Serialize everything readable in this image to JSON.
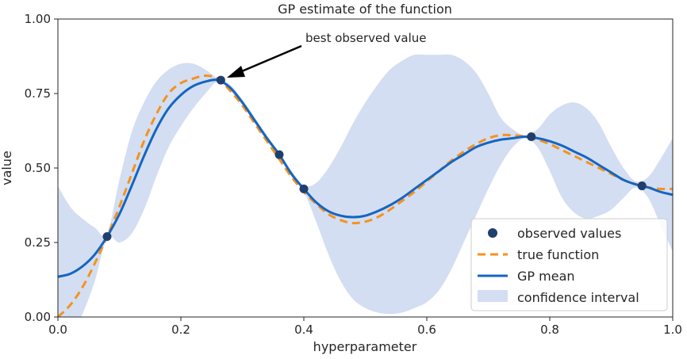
{
  "chart_data": {
    "type": "line",
    "title": "GP estimate of the function",
    "xlabel": "hyperparameter",
    "ylabel": "value",
    "xlim": [
      0.0,
      1.0
    ],
    "ylim": [
      0.0,
      1.0
    ],
    "xticks": [
      "0.0",
      "0.2",
      "0.4",
      "0.6",
      "0.8",
      "1.0"
    ],
    "yticks": [
      "0.00",
      "0.25",
      "0.50",
      "0.75",
      "1.00"
    ],
    "xtick_values": [
      0.0,
      0.2,
      0.4,
      0.6,
      0.8,
      1.0
    ],
    "ytick_values": [
      0.0,
      0.25,
      0.5,
      0.75,
      1.0
    ],
    "grid": false,
    "legend_position": "bottom-right",
    "colors": {
      "observed": "#1f3f6e",
      "true_function": "#f5921e",
      "gp_mean": "#1565c0",
      "confidence": "#d3def2"
    },
    "legend": {
      "observed": "observed values",
      "true_function": "true function",
      "gp_mean": "GP mean",
      "confidence": "confidence interval"
    },
    "annotation": {
      "text": "best observed value",
      "point": [
        0.265,
        0.795
      ]
    },
    "observed": {
      "x": [
        0.08,
        0.265,
        0.36,
        0.4,
        0.77,
        0.95
      ],
      "y": [
        0.27,
        0.795,
        0.545,
        0.43,
        0.605,
        0.44
      ]
    },
    "true_function": {
      "x": [
        0.0,
        0.02,
        0.04,
        0.06,
        0.08,
        0.1,
        0.12,
        0.14,
        0.16,
        0.18,
        0.2,
        0.22,
        0.24,
        0.26,
        0.28,
        0.3,
        0.32,
        0.34,
        0.36,
        0.38,
        0.4,
        0.42,
        0.44,
        0.46,
        0.48,
        0.5,
        0.52,
        0.54,
        0.56,
        0.58,
        0.6,
        0.62,
        0.64,
        0.66,
        0.68,
        0.7,
        0.72,
        0.74,
        0.76,
        0.78,
        0.8,
        0.82,
        0.84,
        0.86,
        0.88,
        0.9,
        0.92,
        0.94,
        0.96,
        0.98,
        1.0
      ],
      "y": [
        0.0,
        0.04,
        0.1,
        0.18,
        0.27,
        0.37,
        0.48,
        0.59,
        0.68,
        0.75,
        0.785,
        0.8,
        0.81,
        0.8,
        0.76,
        0.71,
        0.65,
        0.59,
        0.53,
        0.47,
        0.42,
        0.38,
        0.345,
        0.325,
        0.315,
        0.32,
        0.335,
        0.36,
        0.39,
        0.42,
        0.455,
        0.49,
        0.525,
        0.555,
        0.58,
        0.6,
        0.61,
        0.61,
        0.605,
        0.595,
        0.58,
        0.56,
        0.54,
        0.52,
        0.5,
        0.48,
        0.46,
        0.445,
        0.435,
        0.43,
        0.43
      ]
    },
    "gp_mean": {
      "x": [
        0.0,
        0.02,
        0.04,
        0.06,
        0.08,
        0.1,
        0.12,
        0.14,
        0.16,
        0.18,
        0.2,
        0.22,
        0.24,
        0.26,
        0.28,
        0.3,
        0.32,
        0.34,
        0.36,
        0.38,
        0.4,
        0.42,
        0.44,
        0.46,
        0.48,
        0.5,
        0.52,
        0.54,
        0.56,
        0.58,
        0.6,
        0.62,
        0.64,
        0.66,
        0.68,
        0.7,
        0.72,
        0.74,
        0.76,
        0.78,
        0.8,
        0.82,
        0.84,
        0.86,
        0.88,
        0.9,
        0.92,
        0.94,
        0.96,
        0.98,
        1.0
      ],
      "y": [
        0.135,
        0.145,
        0.17,
        0.21,
        0.27,
        0.345,
        0.44,
        0.54,
        0.63,
        0.7,
        0.745,
        0.775,
        0.79,
        0.795,
        0.77,
        0.72,
        0.66,
        0.6,
        0.545,
        0.48,
        0.43,
        0.385,
        0.355,
        0.34,
        0.335,
        0.34,
        0.355,
        0.375,
        0.4,
        0.43,
        0.46,
        0.49,
        0.52,
        0.545,
        0.57,
        0.585,
        0.595,
        0.6,
        0.605,
        0.6,
        0.59,
        0.575,
        0.555,
        0.535,
        0.51,
        0.485,
        0.46,
        0.445,
        0.435,
        0.42,
        0.41
      ]
    },
    "confidence_interval": {
      "x": [
        0.0,
        0.02,
        0.04,
        0.06,
        0.08,
        0.1,
        0.12,
        0.14,
        0.16,
        0.18,
        0.2,
        0.22,
        0.24,
        0.26,
        0.28,
        0.3,
        0.32,
        0.34,
        0.36,
        0.38,
        0.4,
        0.42,
        0.44,
        0.46,
        0.48,
        0.5,
        0.52,
        0.54,
        0.56,
        0.58,
        0.6,
        0.62,
        0.64,
        0.66,
        0.68,
        0.7,
        0.72,
        0.74,
        0.76,
        0.78,
        0.8,
        0.82,
        0.84,
        0.86,
        0.88,
        0.9,
        0.92,
        0.94,
        0.96,
        0.98,
        1.0
      ],
      "upper": [
        0.44,
        0.37,
        0.33,
        0.3,
        0.28,
        0.46,
        0.62,
        0.72,
        0.79,
        0.83,
        0.85,
        0.85,
        0.83,
        0.8,
        0.78,
        0.73,
        0.67,
        0.61,
        0.55,
        0.49,
        0.44,
        0.45,
        0.5,
        0.57,
        0.65,
        0.72,
        0.78,
        0.83,
        0.86,
        0.88,
        0.88,
        0.88,
        0.88,
        0.86,
        0.82,
        0.75,
        0.67,
        0.63,
        0.61,
        0.63,
        0.68,
        0.71,
        0.72,
        0.7,
        0.65,
        0.57,
        0.5,
        0.455,
        0.47,
        0.53,
        0.6
      ],
      "lower": [
        -0.17,
        -0.08,
        0.01,
        0.12,
        0.265,
        0.25,
        0.28,
        0.36,
        0.47,
        0.57,
        0.64,
        0.7,
        0.75,
        0.79,
        0.76,
        0.71,
        0.65,
        0.59,
        0.54,
        0.47,
        0.42,
        0.32,
        0.21,
        0.12,
        0.06,
        0.03,
        0.015,
        0.01,
        0.015,
        0.03,
        0.05,
        0.09,
        0.16,
        0.25,
        0.34,
        0.43,
        0.51,
        0.57,
        0.6,
        0.57,
        0.49,
        0.4,
        0.35,
        0.33,
        0.34,
        0.36,
        0.4,
        0.435,
        0.4,
        0.31,
        0.22
      ]
    }
  }
}
